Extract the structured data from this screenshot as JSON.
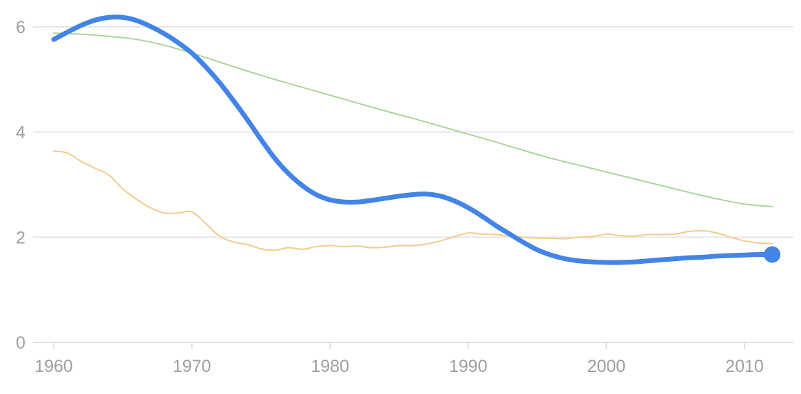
{
  "chart_data": {
    "type": "line",
    "title": "",
    "xlabel": "",
    "ylabel": "",
    "xlim": [
      1957,
      2014
    ],
    "ylim": [
      0,
      6.2
    ],
    "x_ticks": [
      1960,
      1970,
      1980,
      1990,
      2000,
      2010
    ],
    "x_tick_labels": [
      "1960",
      "1970",
      "1980",
      "1990",
      "2000",
      "2010"
    ],
    "y_ticks": [
      0,
      2,
      4,
      6
    ],
    "y_tick_labels": [
      "0",
      "2",
      "4",
      "6"
    ],
    "grid": true,
    "legend": "none",
    "series": [
      {
        "color": "#a8d49b",
        "width": 2,
        "points": [
          [
            1960,
            5.88
          ],
          [
            1962,
            5.86
          ],
          [
            1964,
            5.82
          ],
          [
            1966,
            5.76
          ],
          [
            1968,
            5.65
          ],
          [
            1970,
            5.5
          ],
          [
            1972,
            5.33
          ],
          [
            1974,
            5.16
          ],
          [
            1976,
            5.0
          ],
          [
            1978,
            4.85
          ],
          [
            1980,
            4.7
          ],
          [
            1982,
            4.55
          ],
          [
            1984,
            4.4
          ],
          [
            1986,
            4.26
          ],
          [
            1988,
            4.11
          ],
          [
            1990,
            3.96
          ],
          [
            1992,
            3.81
          ],
          [
            1994,
            3.65
          ],
          [
            1996,
            3.5
          ],
          [
            1998,
            3.37
          ],
          [
            2000,
            3.24
          ],
          [
            2002,
            3.11
          ],
          [
            2004,
            2.98
          ],
          [
            2006,
            2.85
          ],
          [
            2008,
            2.73
          ],
          [
            2010,
            2.63
          ],
          [
            2012,
            2.58
          ]
        ]
      },
      {
        "color": "#f5c98a",
        "width": 2,
        "points": [
          [
            1960,
            3.64
          ],
          [
            1961,
            3.6
          ],
          [
            1962,
            3.44
          ],
          [
            1963,
            3.31
          ],
          [
            1964,
            3.18
          ],
          [
            1965,
            2.92
          ],
          [
            1966,
            2.72
          ],
          [
            1967,
            2.56
          ],
          [
            1968,
            2.46
          ],
          [
            1969,
            2.46
          ],
          [
            1970,
            2.48
          ],
          [
            1971,
            2.26
          ],
          [
            1972,
            2.02
          ],
          [
            1973,
            1.91
          ],
          [
            1974,
            1.86
          ],
          [
            1975,
            1.78
          ],
          [
            1976,
            1.75
          ],
          [
            1977,
            1.8
          ],
          [
            1978,
            1.77
          ],
          [
            1979,
            1.82
          ],
          [
            1980,
            1.84
          ],
          [
            1981,
            1.82
          ],
          [
            1982,
            1.83
          ],
          [
            1983,
            1.8
          ],
          [
            1984,
            1.81
          ],
          [
            1985,
            1.84
          ],
          [
            1986,
            1.84
          ],
          [
            1987,
            1.87
          ],
          [
            1988,
            1.93
          ],
          [
            1989,
            2.01
          ],
          [
            1990,
            2.08
          ],
          [
            1991,
            2.06
          ],
          [
            1992,
            2.05
          ],
          [
            1993,
            2.02
          ],
          [
            1994,
            2.0
          ],
          [
            1995,
            1.98
          ],
          [
            1996,
            1.98
          ],
          [
            1997,
            1.97
          ],
          [
            1998,
            2.0
          ],
          [
            1999,
            2.01
          ],
          [
            2000,
            2.06
          ],
          [
            2001,
            2.03
          ],
          [
            2002,
            2.02
          ],
          [
            2003,
            2.05
          ],
          [
            2004,
            2.05
          ],
          [
            2005,
            2.06
          ],
          [
            2006,
            2.11
          ],
          [
            2007,
            2.12
          ],
          [
            2008,
            2.08
          ],
          [
            2009,
            2.0
          ],
          [
            2010,
            1.93
          ],
          [
            2011,
            1.89
          ],
          [
            2012,
            1.88
          ]
        ]
      },
      {
        "color": "#4384e6",
        "width": 7,
        "end_marker": true,
        "points": [
          [
            1960,
            5.76
          ],
          [
            1961,
            5.9
          ],
          [
            1962,
            6.03
          ],
          [
            1963,
            6.13
          ],
          [
            1964,
            6.18
          ],
          [
            1965,
            6.18
          ],
          [
            1966,
            6.12
          ],
          [
            1967,
            6.01
          ],
          [
            1968,
            5.87
          ],
          [
            1969,
            5.7
          ],
          [
            1970,
            5.5
          ],
          [
            1971,
            5.24
          ],
          [
            1972,
            4.94
          ],
          [
            1973,
            4.6
          ],
          [
            1974,
            4.24
          ],
          [
            1975,
            3.86
          ],
          [
            1976,
            3.5
          ],
          [
            1977,
            3.21
          ],
          [
            1978,
            2.98
          ],
          [
            1979,
            2.81
          ],
          [
            1980,
            2.71
          ],
          [
            1981,
            2.67
          ],
          [
            1982,
            2.67
          ],
          [
            1983,
            2.7
          ],
          [
            1984,
            2.74
          ],
          [
            1985,
            2.78
          ],
          [
            1986,
            2.81
          ],
          [
            1987,
            2.82
          ],
          [
            1988,
            2.78
          ],
          [
            1989,
            2.69
          ],
          [
            1990,
            2.56
          ],
          [
            1991,
            2.4
          ],
          [
            1992,
            2.22
          ],
          [
            1993,
            2.06
          ],
          [
            1994,
            1.9
          ],
          [
            1995,
            1.76
          ],
          [
            1996,
            1.66
          ],
          [
            1997,
            1.59
          ],
          [
            1998,
            1.55
          ],
          [
            1999,
            1.53
          ],
          [
            2000,
            1.52
          ],
          [
            2001,
            1.52
          ],
          [
            2002,
            1.53
          ],
          [
            2003,
            1.55
          ],
          [
            2004,
            1.57
          ],
          [
            2005,
            1.59
          ],
          [
            2006,
            1.61
          ],
          [
            2007,
            1.62
          ],
          [
            2008,
            1.64
          ],
          [
            2009,
            1.65
          ],
          [
            2010,
            1.66
          ],
          [
            2011,
            1.67
          ],
          [
            2012,
            1.67
          ]
        ]
      }
    ]
  }
}
